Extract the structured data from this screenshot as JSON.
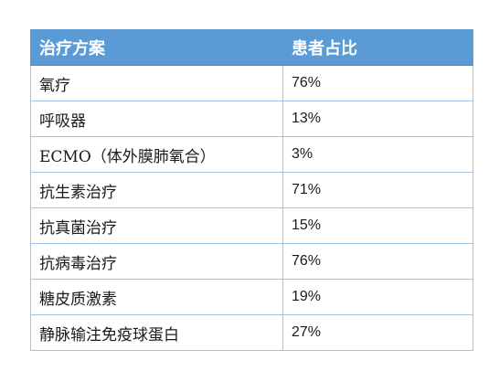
{
  "table": {
    "headers": [
      "治疗方案",
      "患者占比"
    ],
    "rows": [
      {
        "treatment": "氧疗",
        "percent": "76%"
      },
      {
        "treatment": "呼吸器",
        "percent": "13%"
      },
      {
        "treatment": "ECMO（体外膜肺氧合）",
        "percent": "3%"
      },
      {
        "treatment": "抗生素治疗",
        "percent": "71%"
      },
      {
        "treatment": "抗真菌治疗",
        "percent": "15%"
      },
      {
        "treatment": "抗病毒治疗",
        "percent": "76%"
      },
      {
        "treatment": "糖皮质激素",
        "percent": "19%"
      },
      {
        "treatment": "静脉输注免疫球蛋白",
        "percent": "27%"
      }
    ]
  },
  "colors": {
    "header_bg": "#5b9bd5",
    "border": "#9dc3e6",
    "text": "#1a1a1a"
  }
}
